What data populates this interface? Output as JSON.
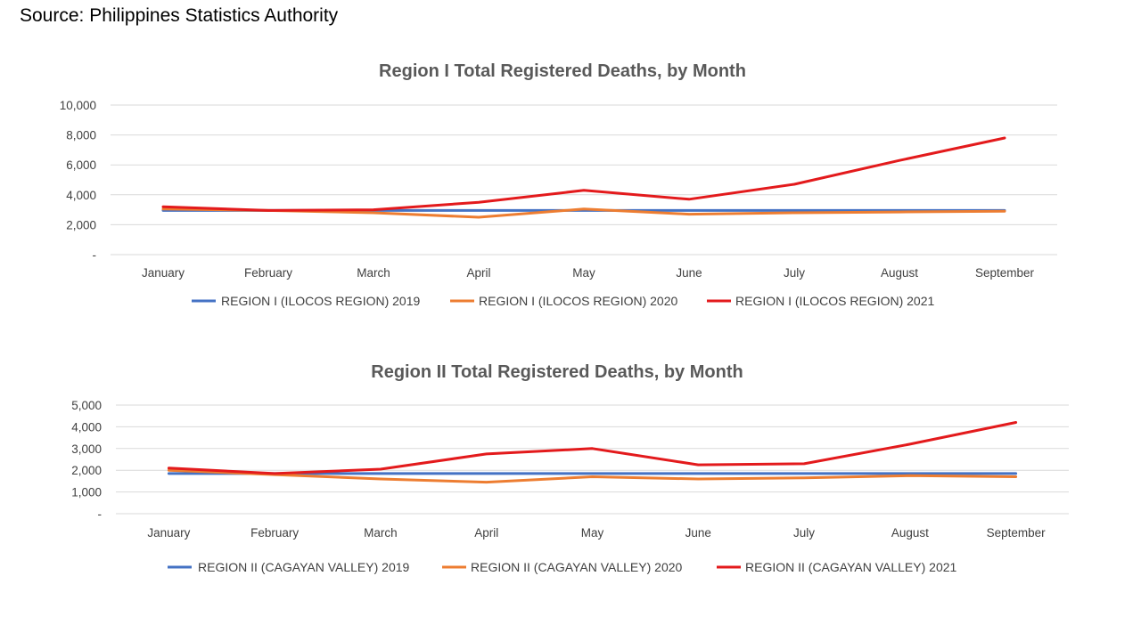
{
  "source_text": "Source:  Philippines Statistics Authority",
  "chart_data": [
    {
      "type": "line",
      "title": "Region I Total Registered Deaths, by Month",
      "categories": [
        "January",
        "February",
        "March",
        "April",
        "May",
        "June",
        "July",
        "August",
        "September"
      ],
      "ylim": [
        0,
        10000
      ],
      "yticks": [
        0,
        2000,
        4000,
        6000,
        8000,
        10000
      ],
      "ytick_labels": [
        "-",
        "2,000",
        "4,000",
        "6,000",
        "8,000",
        "10,000"
      ],
      "grid": true,
      "legend": "bottom",
      "series": [
        {
          "name": "REGION I (ILOCOS REGION) 2019",
          "color": "#4472c4",
          "values": [
            2950,
            2950,
            2950,
            2950,
            2950,
            2950,
            2950,
            2950,
            2950
          ]
        },
        {
          "name": "REGION I (ILOCOS REGION) 2020",
          "color": "#ed7d31",
          "values": [
            3050,
            2950,
            2800,
            2500,
            3050,
            2700,
            2800,
            2850,
            2900
          ]
        },
        {
          "name": "REGION I (ILOCOS REGION) 2021",
          "color": "#e31a1c",
          "values": [
            3200,
            2950,
            3000,
            3500,
            4300,
            3700,
            4700,
            6300,
            7800
          ]
        }
      ]
    },
    {
      "type": "line",
      "title": "Region II Total Registered Deaths, by Month",
      "categories": [
        "January",
        "February",
        "March",
        "April",
        "May",
        "June",
        "July",
        "August",
        "September"
      ],
      "ylim": [
        0,
        5000
      ],
      "yticks": [
        0,
        1000,
        2000,
        3000,
        4000,
        5000
      ],
      "ytick_labels": [
        "-",
        "1,000",
        "2,000",
        "3,000",
        "4,000",
        "5,000"
      ],
      "grid": true,
      "legend": "bottom",
      "series": [
        {
          "name": "REGION II (CAGAYAN VALLEY) 2019",
          "color": "#4472c4",
          "values": [
            1850,
            1850,
            1850,
            1850,
            1850,
            1850,
            1850,
            1850,
            1850
          ]
        },
        {
          "name": "REGION II (CAGAYAN VALLEY) 2020",
          "color": "#ed7d31",
          "values": [
            2000,
            1800,
            1600,
            1450,
            1700,
            1600,
            1650,
            1750,
            1700
          ]
        },
        {
          "name": "REGION II (CAGAYAN VALLEY) 2021",
          "color": "#e31a1c",
          "values": [
            2100,
            1850,
            2050,
            2750,
            3000,
            2250,
            2300,
            3200,
            4200
          ]
        }
      ]
    }
  ]
}
